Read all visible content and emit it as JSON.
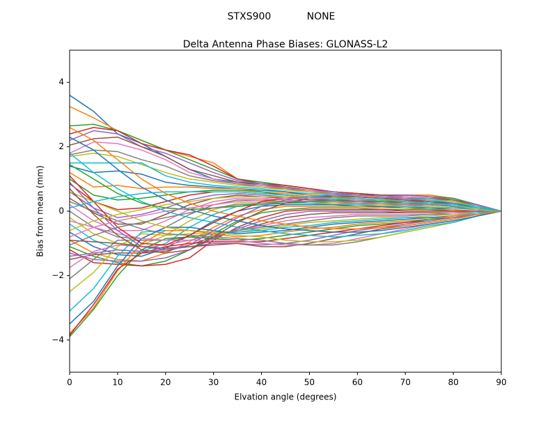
{
  "header": {
    "station": "STXS900",
    "radome": "NONE"
  },
  "chart_data": {
    "type": "line",
    "title": "Delta Antenna Phase Biases: GLONASS-L2",
    "xlabel": "Elvation angle (degrees)",
    "ylabel": "Bias from mean (mm)",
    "xlim": [
      0,
      90
    ],
    "ylim": [
      -5,
      5
    ],
    "xticks": [
      0,
      10,
      20,
      30,
      40,
      50,
      60,
      70,
      80,
      90
    ],
    "yticks": [
      -4,
      -2,
      0,
      2,
      4
    ],
    "grid": false,
    "x": [
      0,
      5,
      10,
      15,
      20,
      25,
      30,
      35,
      40,
      45,
      50,
      55,
      60,
      65,
      70,
      75,
      80,
      85,
      90
    ],
    "colors": [
      "#1f77b4",
      "#ff7f0e",
      "#2ca02c",
      "#d62728",
      "#9467bd",
      "#8c564b",
      "#e377c2",
      "#7f7f7f",
      "#bcbd22",
      "#17becf"
    ],
    "series": [
      {
        "values": [
          3.6,
          3.1,
          2.4,
          2.1,
          1.7,
          1.3,
          1.0,
          0.9,
          0.85,
          0.8,
          0.7,
          0.6,
          0.55,
          0.5,
          0.5,
          0.5,
          0.4,
          0.2,
          0
        ]
      },
      {
        "values": [
          3.25,
          2.9,
          2.5,
          2.2,
          1.9,
          1.7,
          1.5,
          1.0,
          0.9,
          0.8,
          0.7,
          0.6,
          0.55,
          0.5,
          0.5,
          0.5,
          0.4,
          0.2,
          0
        ]
      },
      {
        "values": [
          2.65,
          2.7,
          2.5,
          2.2,
          1.9,
          1.6,
          1.3,
          1.0,
          0.9,
          0.8,
          0.7,
          0.6,
          0.55,
          0.5,
          0.5,
          0.45,
          0.4,
          0.2,
          0
        ]
      },
      {
        "values": [
          2.4,
          2.6,
          2.5,
          2.1,
          1.9,
          1.75,
          1.4,
          1.0,
          0.85,
          0.8,
          0.7,
          0.6,
          0.55,
          0.5,
          0.5,
          0.45,
          0.35,
          0.2,
          0
        ]
      },
      {
        "values": [
          2.2,
          2.5,
          2.4,
          2.0,
          1.8,
          1.5,
          1.2,
          0.95,
          0.85,
          0.75,
          0.65,
          0.6,
          0.5,
          0.5,
          0.5,
          0.45,
          0.35,
          0.2,
          0
        ]
      },
      {
        "values": [
          2.05,
          2.25,
          2.3,
          2.0,
          1.7,
          1.3,
          1.1,
          0.9,
          0.8,
          0.75,
          0.65,
          0.55,
          0.5,
          0.5,
          0.45,
          0.4,
          0.35,
          0.15,
          0
        ]
      },
      {
        "values": [
          1.8,
          2.15,
          2.1,
          1.9,
          1.6,
          1.2,
          1.0,
          0.85,
          0.8,
          0.7,
          0.65,
          0.55,
          0.5,
          0.45,
          0.45,
          0.4,
          0.3,
          0.15,
          0
        ]
      },
      {
        "values": [
          1.75,
          1.9,
          1.85,
          1.6,
          1.4,
          1.1,
          0.95,
          0.85,
          0.75,
          0.7,
          0.6,
          0.55,
          0.5,
          0.45,
          0.4,
          0.4,
          0.3,
          0.15,
          0
        ]
      },
      {
        "values": [
          1.7,
          1.8,
          1.7,
          1.45,
          1.2,
          1.0,
          0.9,
          0.8,
          0.75,
          0.65,
          0.6,
          0.5,
          0.5,
          0.45,
          0.4,
          0.35,
          0.3,
          0.15,
          0
        ]
      },
      {
        "values": [
          1.5,
          1.5,
          1.5,
          1.5,
          1.1,
          0.9,
          0.8,
          0.75,
          0.7,
          0.6,
          0.55,
          0.5,
          0.45,
          0.4,
          0.4,
          0.35,
          0.25,
          0.15,
          0
        ]
      },
      {
        "values": [
          1.4,
          1.2,
          1.25,
          1.15,
          0.9,
          0.8,
          0.75,
          0.7,
          0.65,
          0.6,
          0.5,
          0.45,
          0.45,
          0.4,
          0.35,
          0.3,
          0.25,
          0.1,
          0
        ]
      },
      {
        "values": [
          1.2,
          0.75,
          0.8,
          0.7,
          0.75,
          0.75,
          0.7,
          0.7,
          0.6,
          0.55,
          0.5,
          0.45,
          0.4,
          0.35,
          0.35,
          0.3,
          0.2,
          0.1,
          0
        ]
      },
      {
        "values": [
          1.0,
          0.5,
          0.35,
          0.4,
          0.5,
          0.6,
          0.65,
          0.65,
          0.6,
          0.5,
          0.45,
          0.4,
          0.4,
          0.35,
          0.3,
          0.25,
          0.2,
          0.1,
          0
        ]
      },
      {
        "values": [
          0.85,
          0.3,
          0.05,
          0.1,
          0.3,
          0.5,
          0.6,
          0.6,
          0.55,
          0.5,
          0.45,
          0.4,
          0.35,
          0.3,
          0.3,
          0.25,
          0.2,
          0.1,
          0
        ]
      },
      {
        "values": [
          0.6,
          0.1,
          -0.2,
          -0.1,
          0.1,
          0.35,
          0.5,
          0.55,
          0.5,
          0.45,
          0.4,
          0.35,
          0.35,
          0.3,
          0.25,
          0.25,
          0.15,
          0.05,
          0
        ]
      },
      {
        "values": [
          0.4,
          -0.05,
          -0.4,
          -0.4,
          -0.1,
          0.2,
          0.4,
          0.5,
          0.45,
          0.4,
          0.35,
          0.35,
          0.3,
          0.3,
          0.25,
          0.2,
          0.15,
          0.05,
          0
        ]
      },
      {
        "values": [
          0.2,
          -0.3,
          -0.6,
          -0.6,
          -0.3,
          0.05,
          0.3,
          0.4,
          0.4,
          0.35,
          0.3,
          0.3,
          0.25,
          0.25,
          0.2,
          0.2,
          0.15,
          0.05,
          0
        ]
      },
      {
        "values": [
          0.0,
          -0.5,
          -0.8,
          -0.85,
          -0.5,
          -0.1,
          0.2,
          0.35,
          0.35,
          0.3,
          0.3,
          0.25,
          0.25,
          0.2,
          0.2,
          0.15,
          0.1,
          0.05,
          0
        ]
      },
      {
        "values": [
          -0.2,
          -0.7,
          -1.0,
          -1.05,
          -0.75,
          -0.3,
          0.05,
          0.25,
          0.3,
          0.3,
          0.25,
          0.25,
          0.2,
          0.2,
          0.15,
          0.15,
          0.1,
          0.05,
          0
        ]
      },
      {
        "values": [
          -0.4,
          -0.9,
          -1.2,
          -1.25,
          -1.0,
          -0.5,
          -0.1,
          0.15,
          0.25,
          0.25,
          0.25,
          0.2,
          0.2,
          0.15,
          0.15,
          0.1,
          0.1,
          0.05,
          0
        ]
      },
      {
        "values": [
          -0.65,
          -1.1,
          -1.35,
          -1.4,
          -1.15,
          -0.75,
          -0.3,
          0.0,
          0.15,
          0.2,
          0.2,
          0.2,
          0.15,
          0.15,
          0.1,
          0.1,
          0.05,
          0.0,
          0
        ]
      },
      {
        "values": [
          -0.9,
          -1.3,
          -1.5,
          -1.55,
          -1.3,
          -0.95,
          -0.5,
          -0.15,
          0.05,
          0.15,
          0.15,
          0.15,
          0.15,
          0.1,
          0.1,
          0.05,
          0.05,
          0.0,
          0
        ]
      },
      {
        "values": [
          -1.1,
          -1.4,
          -1.6,
          -1.7,
          -1.55,
          -1.2,
          -0.7,
          -0.3,
          -0.05,
          0.05,
          0.1,
          0.1,
          0.1,
          0.05,
          0.05,
          0.05,
          0.0,
          0.0,
          0
        ]
      },
      {
        "values": [
          -1.2,
          -1.6,
          -1.65,
          -1.7,
          -1.65,
          -1.45,
          -0.9,
          -0.5,
          -0.2,
          0.0,
          0.05,
          0.05,
          0.05,
          0.05,
          0.0,
          0.0,
          0.0,
          0.0,
          0
        ]
      },
      {
        "values": [
          -1.3,
          -1.5,
          -1.55,
          -1.55,
          -1.45,
          -1.2,
          -0.85,
          -0.55,
          -0.3,
          -0.1,
          0.0,
          0.0,
          0.0,
          0.0,
          -0.05,
          -0.05,
          -0.05,
          0.0,
          0
        ]
      },
      {
        "values": [
          -1.5,
          -1.35,
          -1.3,
          -1.3,
          -1.25,
          -1.05,
          -0.8,
          -0.6,
          -0.4,
          -0.2,
          -0.1,
          -0.05,
          -0.05,
          -0.05,
          -0.05,
          -0.05,
          -0.05,
          -0.05,
          0
        ]
      },
      {
        "values": [
          -1.75,
          -1.25,
          -1.05,
          -1.1,
          -1.05,
          -0.9,
          -0.75,
          -0.6,
          -0.45,
          -0.3,
          -0.2,
          -0.15,
          -0.1,
          -0.1,
          -0.1,
          -0.1,
          -0.05,
          -0.05,
          0
        ]
      },
      {
        "values": [
          -2.1,
          -1.5,
          -0.9,
          -0.9,
          -0.9,
          -0.8,
          -0.7,
          -0.6,
          -0.5,
          -0.4,
          -0.3,
          -0.2,
          -0.15,
          -0.15,
          -0.15,
          -0.1,
          -0.1,
          -0.05,
          0
        ]
      },
      {
        "values": [
          -2.5,
          -1.9,
          -1.1,
          -0.7,
          -0.75,
          -0.7,
          -0.7,
          -0.65,
          -0.55,
          -0.45,
          -0.35,
          -0.3,
          -0.25,
          -0.2,
          -0.2,
          -0.15,
          -0.1,
          -0.05,
          0
        ]
      },
      {
        "values": [
          -3.1,
          -2.4,
          -1.4,
          -0.65,
          -0.6,
          -0.6,
          -0.65,
          -0.65,
          -0.6,
          -0.5,
          -0.45,
          -0.35,
          -0.3,
          -0.25,
          -0.2,
          -0.2,
          -0.15,
          -0.05,
          0
        ]
      },
      {
        "values": [
          -3.5,
          -2.8,
          -1.7,
          -0.85,
          -0.5,
          -0.5,
          -0.6,
          -0.7,
          -0.65,
          -0.6,
          -0.5,
          -0.4,
          -0.35,
          -0.3,
          -0.25,
          -0.2,
          -0.15,
          -0.1,
          0
        ]
      },
      {
        "values": [
          -3.8,
          -3.0,
          -1.85,
          -1.0,
          -0.6,
          -0.6,
          -0.7,
          -0.8,
          -0.75,
          -0.65,
          -0.55,
          -0.5,
          -0.4,
          -0.35,
          -0.3,
          -0.25,
          -0.15,
          -0.1,
          0
        ]
      },
      {
        "values": [
          -3.9,
          -3.05,
          -2.0,
          -1.2,
          -0.85,
          -0.8,
          -0.85,
          -0.9,
          -0.85,
          -0.75,
          -0.65,
          -0.55,
          -0.45,
          -0.4,
          -0.35,
          -0.25,
          -0.2,
          -0.1,
          0
        ]
      },
      {
        "values": [
          -3.85,
          -2.9,
          -1.8,
          -1.3,
          -1.1,
          -1.0,
          -0.95,
          -0.95,
          -0.95,
          -0.85,
          -0.75,
          -0.65,
          -0.55,
          -0.45,
          -0.35,
          -0.3,
          -0.2,
          -0.1,
          0
        ]
      },
      {
        "values": [
          -1.4,
          -1.3,
          -1.2,
          -1.25,
          -1.2,
          -1.1,
          -1.0,
          -1.0,
          -1.05,
          -1.0,
          -0.9,
          -0.75,
          -0.6,
          -0.5,
          -0.4,
          -0.3,
          -0.2,
          -0.1,
          0
        ]
      },
      {
        "values": [
          -0.9,
          -0.95,
          -1.0,
          -1.1,
          -1.15,
          -1.1,
          -1.05,
          -1.0,
          -1.1,
          -1.1,
          -1.0,
          -0.85,
          -0.7,
          -0.55,
          -0.45,
          -0.35,
          -0.25,
          -0.1,
          0
        ]
      },
      {
        "values": [
          -0.3,
          -0.5,
          -0.7,
          -0.85,
          -0.9,
          -0.9,
          -0.9,
          -0.9,
          -1.0,
          -1.05,
          -1.05,
          -1.0,
          -0.85,
          -0.7,
          -0.55,
          -0.4,
          -0.3,
          -0.15,
          0
        ]
      },
      {
        "values": [
          0.3,
          0.0,
          -0.3,
          -0.55,
          -0.7,
          -0.75,
          -0.8,
          -0.85,
          -0.9,
          -1.0,
          -1.05,
          -1.05,
          -0.95,
          -0.8,
          -0.65,
          -0.5,
          -0.35,
          -0.15,
          0
        ]
      },
      {
        "values": [
          0.6,
          0.3,
          0.0,
          -0.3,
          -0.5,
          -0.6,
          -0.65,
          -0.75,
          -0.8,
          -0.9,
          -0.95,
          -0.95,
          -0.9,
          -0.8,
          -0.65,
          -0.5,
          -0.35,
          -0.15,
          0
        ]
      },
      {
        "values": [
          1.8,
          1.2,
          0.7,
          0.3,
          0.0,
          -0.2,
          -0.35,
          -0.5,
          -0.6,
          -0.7,
          -0.75,
          -0.8,
          -0.75,
          -0.7,
          -0.6,
          -0.45,
          -0.35,
          -0.15,
          0
        ]
      },
      {
        "values": [
          2.3,
          1.9,
          1.3,
          0.75,
          0.35,
          0.05,
          -0.15,
          -0.3,
          -0.45,
          -0.55,
          -0.6,
          -0.65,
          -0.65,
          -0.6,
          -0.5,
          -0.4,
          -0.3,
          -0.15,
          0
        ]
      },
      {
        "values": [
          2.6,
          2.2,
          1.6,
          1.0,
          0.55,
          0.25,
          0.0,
          -0.15,
          -0.3,
          -0.4,
          -0.5,
          -0.55,
          -0.55,
          -0.5,
          -0.45,
          -0.35,
          -0.25,
          -0.1,
          0
        ]
      },
      {
        "values": [
          1.45,
          1.0,
          0.55,
          0.25,
          0.1,
          0.05,
          0.1,
          0.15,
          0.2,
          0.25,
          0.3,
          0.35,
          0.35,
          0.3,
          0.25,
          0.2,
          0.15,
          0.05,
          0
        ]
      },
      {
        "values": [
          1.1,
          0.3,
          -0.5,
          -1.0,
          -1.05,
          -0.75,
          -0.35,
          0.0,
          0.3,
          0.4,
          0.45,
          0.45,
          0.45,
          0.4,
          0.35,
          0.25,
          0.15,
          0.05,
          0
        ]
      },
      {
        "values": [
          0.9,
          0.1,
          -0.6,
          -1.1,
          -1.2,
          -1.05,
          -0.6,
          -0.2,
          0.15,
          0.35,
          0.45,
          0.5,
          0.5,
          0.45,
          0.4,
          0.3,
          0.2,
          0.1,
          0
        ]
      },
      {
        "values": [
          0.7,
          -0.1,
          -0.75,
          -1.2,
          -1.3,
          -1.2,
          -0.8,
          -0.35,
          0.0,
          0.25,
          0.4,
          0.45,
          0.45,
          0.4,
          0.35,
          0.3,
          0.2,
          0.1,
          0
        ]
      },
      {
        "values": [
          -0.8,
          -0.5,
          -0.3,
          -0.15,
          0.0,
          0.1,
          0.2,
          0.3,
          0.35,
          0.4,
          0.4,
          0.4,
          0.35,
          0.35,
          0.3,
          0.25,
          0.15,
          0.05,
          0
        ]
      },
      {
        "values": [
          -1.05,
          -0.75,
          -0.5,
          -0.35,
          -0.2,
          -0.05,
          0.1,
          0.2,
          0.25,
          0.3,
          0.3,
          0.3,
          0.3,
          0.25,
          0.25,
          0.2,
          0.15,
          0.05,
          0
        ]
      },
      {
        "values": [
          -0.6,
          -0.3,
          -0.1,
          0.05,
          0.2,
          0.3,
          0.4,
          0.45,
          0.45,
          0.45,
          0.45,
          0.4,
          0.4,
          0.35,
          0.3,
          0.25,
          0.2,
          0.05,
          0
        ]
      },
      {
        "values": [
          0.1,
          0.3,
          0.45,
          0.55,
          0.6,
          0.6,
          0.6,
          0.6,
          0.55,
          0.5,
          0.45,
          0.4,
          0.4,
          0.35,
          0.3,
          0.25,
          0.2,
          0.1,
          0
        ]
      }
    ]
  }
}
